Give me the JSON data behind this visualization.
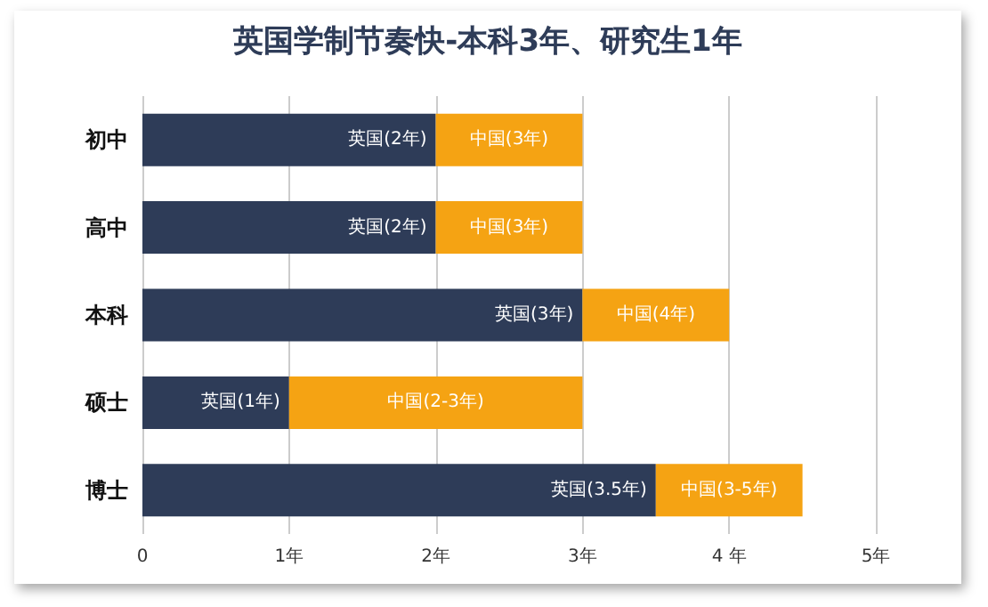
{
  "chart_data": {
    "type": "bar",
    "title": "英国学制节奏快-本科3年、研究生1年",
    "orientation": "horizontal",
    "stacked": true,
    "categories": [
      "初中",
      "高中",
      "本科",
      "硕士",
      "博士"
    ],
    "series": [
      {
        "color": "#2e3c58",
        "values": [
          2,
          2,
          3,
          1,
          3.5
        ],
        "value_labels": [
          "英国(2年)",
          "英国(2年)",
          "英国(3年)",
          "英国(1年)",
          "英国(3.5年)"
        ]
      },
      {
        "color": "#f5a313",
        "values": [
          1,
          1,
          1,
          2,
          1
        ],
        "value_labels": [
          "中国(3年)",
          "中国(3年)",
          "中国(4年)",
          "中国(2-3年)",
          "中国(3-5年)"
        ]
      }
    ],
    "xlim": [
      0,
      5
    ],
    "xticks": [
      0,
      {
        "value": 1,
        "label": "1年"
      },
      {
        "value": 2,
        "label": "2年"
      },
      {
        "value": 3,
        "label": "3年"
      },
      {
        "value": 4,
        "label": "4 年"
      },
      {
        "value": 5,
        "label": "5年"
      }
    ],
    "grid": "x"
  }
}
